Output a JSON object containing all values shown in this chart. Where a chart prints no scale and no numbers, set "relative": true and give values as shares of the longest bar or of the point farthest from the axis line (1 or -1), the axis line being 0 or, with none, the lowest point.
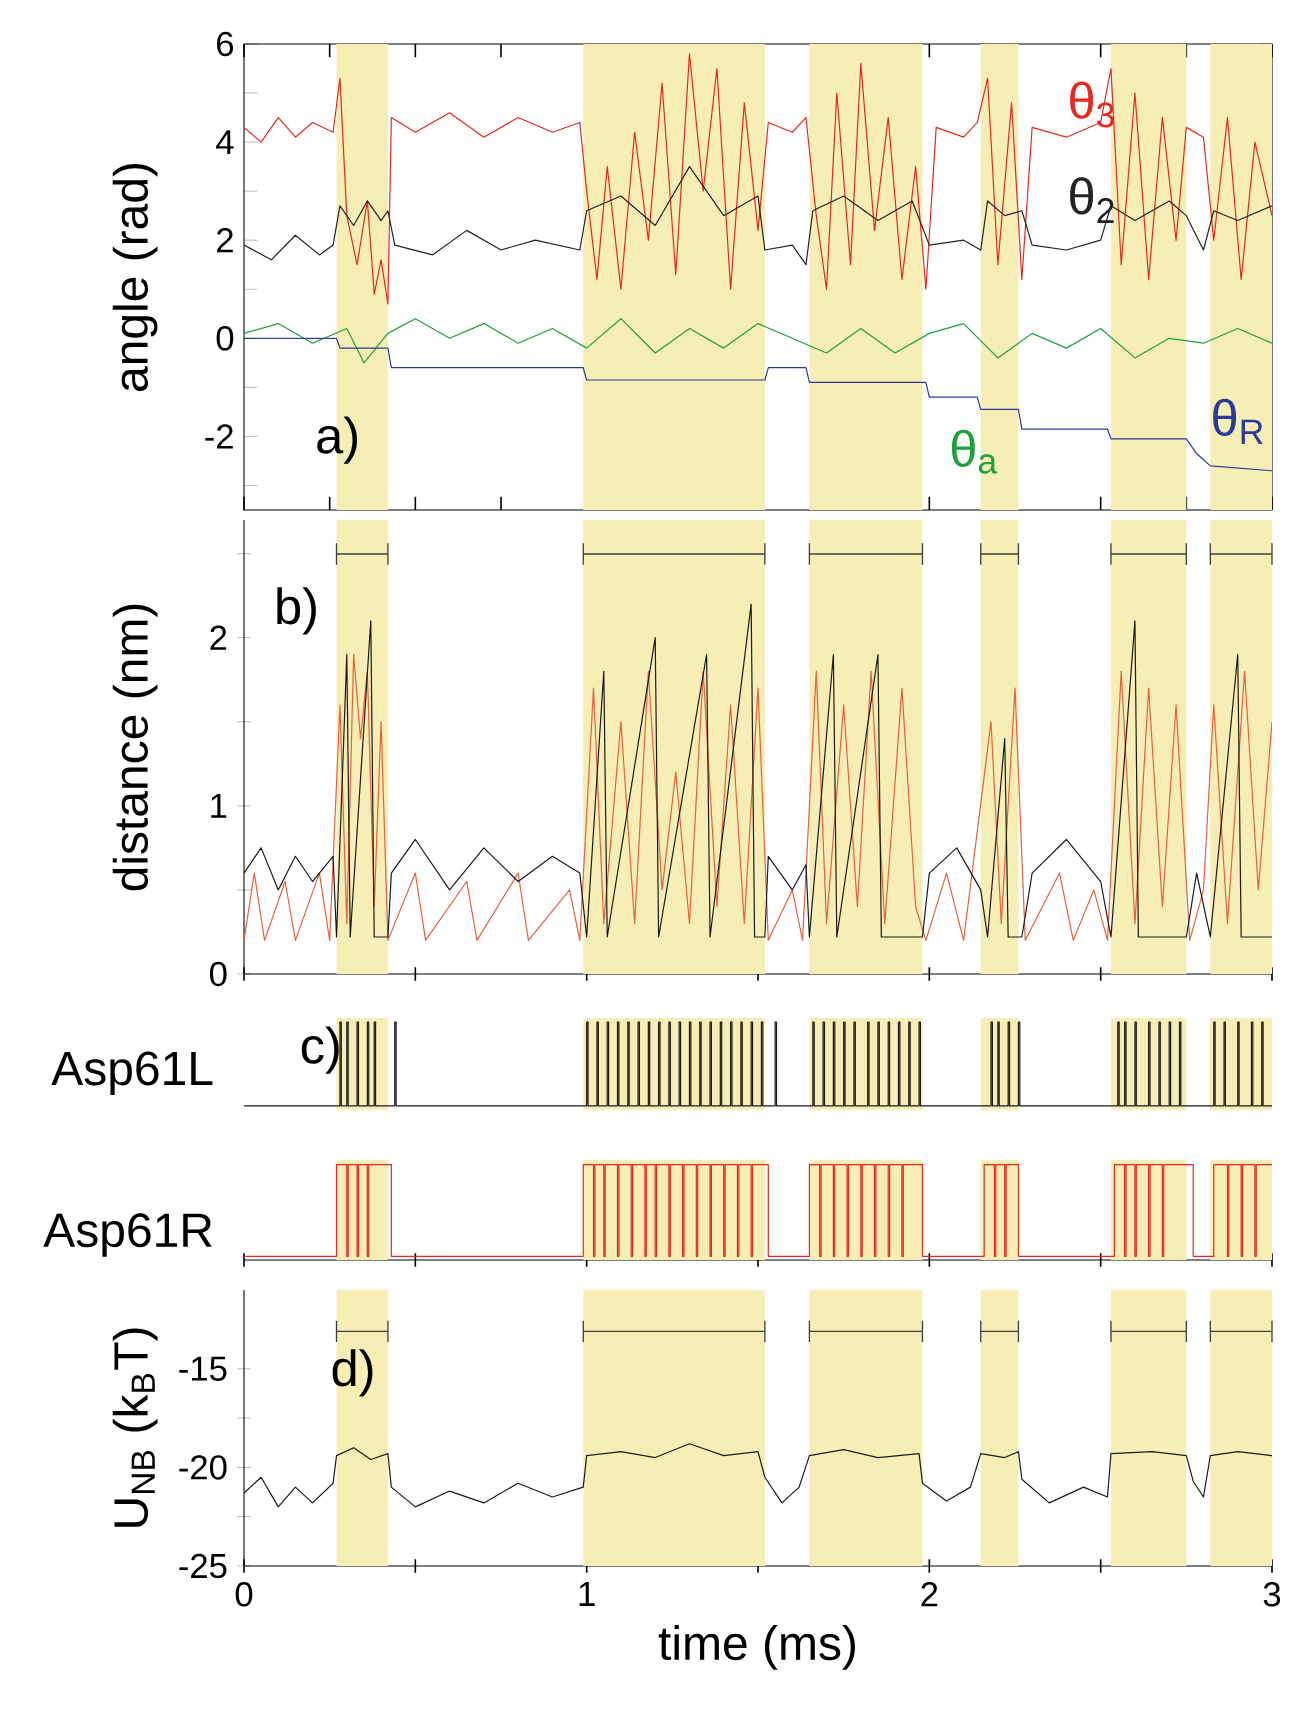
{
  "chart_data": [
    {
      "type": "line",
      "ylabel": "angle (rad)",
      "xlim": [
        0,
        3
      ],
      "ylim": [
        -3.5,
        6
      ],
      "tick_labels": "y",
      "xticks": [
        {
          "value": 0,
          "label": null
        },
        {
          "value": 0.25,
          "label": null
        },
        {
          "value": 0.5,
          "label": null
        },
        {
          "value": 0.75,
          "label": null
        },
        {
          "value": 1,
          "label": null
        },
        {
          "value": 1.25,
          "label": null
        },
        {
          "value": 1.5,
          "label": null
        },
        {
          "value": 1.75,
          "label": null
        },
        {
          "value": 2,
          "label": null
        },
        {
          "value": 2.25,
          "label": null
        },
        {
          "value": 2.5,
          "label": null
        },
        {
          "value": 2.75,
          "label": null
        },
        {
          "value": 3,
          "label": null
        }
      ],
      "yticks": [
        {
          "value": -3,
          "label": null
        },
        -2,
        {
          "value": -1,
          "label": null
        },
        0,
        {
          "value": 1,
          "label": null
        },
        2,
        {
          "value": 3,
          "label": null
        },
        4,
        {
          "value": 5,
          "label": null
        },
        6
      ],
      "annotations": [
        "a)"
      ],
      "bands": [
        {
          "axis": "x",
          "from": 0.27,
          "to": 0.42,
          "color": "#f6eeb4"
        },
        {
          "axis": "x",
          "from": 0.99,
          "to": 1.52,
          "color": "#f6eeb4"
        },
        {
          "axis": "x",
          "from": 1.65,
          "to": 1.98,
          "color": "#f6eeb4"
        },
        {
          "axis": "x",
          "from": 2.15,
          "to": 2.26,
          "color": "#f6eeb4"
        },
        {
          "axis": "x",
          "from": 2.53,
          "to": 2.75,
          "color": "#f6eeb4"
        },
        {
          "axis": "x",
          "from": 2.82,
          "to": 3,
          "color": "#f6eeb4"
        }
      ],
      "series": [
        {
          "name": "θ$_{3}$",
          "color": "#e8281e",
          "x": [
            0,
            0.05,
            0.1,
            0.15,
            0.2,
            0.26,
            0.28,
            0.3,
            0.33,
            0.36,
            0.38,
            0.4,
            0.42,
            0.43,
            0.5,
            0.6,
            0.7,
            0.8,
            0.9,
            0.98,
            1.0,
            1.03,
            1.06,
            1.1,
            1.14,
            1.18,
            1.22,
            1.26,
            1.3,
            1.34,
            1.38,
            1.42,
            1.46,
            1.5,
            1.53,
            1.6,
            1.64,
            1.67,
            1.7,
            1.73,
            1.77,
            1.8,
            1.84,
            1.88,
            1.92,
            1.96,
            1.99,
            2.02,
            2.1,
            2.14,
            2.17,
            2.2,
            2.24,
            2.27,
            2.3,
            2.4,
            2.5,
            2.53,
            2.56,
            2.6,
            2.64,
            2.68,
            2.72,
            2.75,
            2.8,
            2.83,
            2.87,
            2.91,
            2.95,
            3.0
          ],
          "values": [
            4.3,
            4.0,
            4.5,
            4.1,
            4.4,
            4.2,
            5.3,
            2.5,
            1.5,
            2.8,
            0.9,
            1.6,
            0.7,
            4.5,
            4.2,
            4.6,
            4.1,
            4.5,
            4.2,
            4.4,
            3.0,
            1.2,
            3.5,
            1.0,
            4.2,
            2.0,
            5.2,
            1.3,
            5.8,
            3.0,
            5.5,
            1.0,
            4.8,
            2.2,
            4.4,
            4.2,
            4.5,
            2.5,
            1.0,
            5.0,
            1.5,
            5.6,
            2.2,
            4.5,
            1.2,
            3.5,
            1.0,
            4.3,
            4.1,
            4.4,
            5.3,
            1.5,
            4.8,
            1.2,
            4.3,
            4.1,
            4.4,
            5.5,
            1.5,
            5.0,
            1.2,
            4.5,
            2.0,
            4.3,
            4.1,
            2.0,
            4.5,
            1.2,
            4.0,
            2.5
          ]
        },
        {
          "name": "θ$_{2}$",
          "color": "#222222",
          "x": [
            0,
            0.08,
            0.15,
            0.22,
            0.26,
            0.28,
            0.32,
            0.36,
            0.4,
            0.42,
            0.44,
            0.55,
            0.65,
            0.75,
            0.85,
            0.98,
            1.0,
            1.1,
            1.2,
            1.3,
            1.4,
            1.5,
            1.52,
            1.6,
            1.64,
            1.66,
            1.75,
            1.85,
            1.95,
            2.0,
            2.1,
            2.15,
            2.17,
            2.22,
            2.27,
            2.3,
            2.4,
            2.5,
            2.53,
            2.6,
            2.7,
            2.75,
            2.8,
            2.83,
            2.9,
            3.0
          ],
          "values": [
            1.9,
            1.6,
            2.1,
            1.7,
            1.9,
            2.7,
            2.3,
            2.8,
            2.4,
            2.6,
            1.9,
            1.7,
            2.2,
            1.8,
            2.0,
            1.8,
            2.6,
            2.9,
            2.3,
            3.5,
            2.5,
            2.9,
            1.8,
            1.9,
            1.5,
            2.6,
            2.9,
            2.4,
            2.8,
            1.9,
            2.0,
            1.8,
            2.8,
            2.5,
            2.6,
            1.9,
            1.8,
            2.0,
            2.7,
            2.4,
            2.8,
            2.5,
            1.8,
            2.6,
            2.4,
            2.7
          ]
        },
        {
          "name": "θ$_{a}$",
          "color": "#1ea03c",
          "x": [
            0,
            0.1,
            0.2,
            0.3,
            0.35,
            0.42,
            0.5,
            0.6,
            0.7,
            0.8,
            0.9,
            1.0,
            1.1,
            1.2,
            1.3,
            1.4,
            1.5,
            1.6,
            1.7,
            1.8,
            1.9,
            2.0,
            2.1,
            2.2,
            2.3,
            2.4,
            2.5,
            2.6,
            2.7,
            2.8,
            2.9,
            3.0
          ],
          "values": [
            0.1,
            0.3,
            -0.1,
            0.2,
            -0.5,
            0.1,
            0.4,
            0.0,
            0.3,
            -0.1,
            0.2,
            -0.2,
            0.4,
            -0.3,
            0.2,
            -0.2,
            0.3,
            0.0,
            -0.3,
            0.2,
            -0.3,
            0.1,
            0.3,
            -0.4,
            0.1,
            -0.2,
            0.2,
            -0.4,
            0.0,
            -0.1,
            0.2,
            -0.1
          ]
        },
        {
          "name": "θ$_{R}$",
          "color": "#2a3a9a",
          "x": [
            0,
            0.27,
            0.28,
            0.42,
            0.43,
            0.99,
            1.0,
            1.52,
            1.53,
            1.64,
            1.65,
            1.99,
            2.0,
            2.14,
            2.15,
            2.26,
            2.27,
            2.52,
            2.53,
            2.75,
            2.78,
            2.82,
            3.0
          ],
          "values": [
            0,
            0,
            -0.2,
            -0.2,
            -0.6,
            -0.6,
            -0.85,
            -0.85,
            -0.6,
            -0.6,
            -0.9,
            -0.9,
            -1.2,
            -1.2,
            -1.45,
            -1.45,
            -1.85,
            -1.85,
            -2.05,
            -2.05,
            -2.35,
            -2.6,
            -2.7
          ]
        }
      ]
    },
    {
      "type": "line",
      "ylabel": "distance (nm)",
      "xlim": [
        0,
        3
      ],
      "ylim": [
        0,
        2.7
      ],
      "tick_labels": "y",
      "xticks": [
        {
          "value": 0,
          "label": null
        },
        {
          "value": 0.5,
          "label": null
        },
        {
          "value": 1,
          "label": null
        },
        {
          "value": 1.5,
          "label": null
        },
        {
          "value": 2,
          "label": null
        },
        {
          "value": 2.5,
          "label": null
        },
        {
          "value": 3,
          "label": null
        }
      ],
      "yticks": [
        0,
        {
          "value": 0.5,
          "label": null
        },
        1,
        {
          "value": 1.5,
          "label": null
        },
        2,
        {
          "value": 2.5,
          "label": null
        }
      ],
      "annotations": [
        "b)"
      ],
      "bands": [
        {
          "axis": "x",
          "from": 0.27,
          "to": 0.42,
          "color": "#f6eeb4"
        },
        {
          "axis": "x",
          "from": 0.99,
          "to": 1.52,
          "color": "#f6eeb4"
        },
        {
          "axis": "x",
          "from": 1.65,
          "to": 1.98,
          "color": "#f6eeb4"
        },
        {
          "axis": "x",
          "from": 2.15,
          "to": 2.26,
          "color": "#f6eeb4"
        },
        {
          "axis": "x",
          "from": 2.53,
          "to": 2.75,
          "color": "#f6eeb4"
        },
        {
          "axis": "x",
          "from": 2.82,
          "to": 3,
          "color": "#f6eeb4"
        }
      ],
      "series": [
        {
          "color": "#e8603c",
          "x": [
            0,
            0.03,
            0.06,
            0.12,
            0.15,
            0.22,
            0.25,
            0.28,
            0.3,
            0.32,
            0.34,
            0.36,
            0.38,
            0.4,
            0.42,
            0.5,
            0.53,
            0.65,
            0.68,
            0.8,
            0.83,
            0.95,
            0.98,
            1.02,
            1.05,
            1.1,
            1.14,
            1.18,
            1.22,
            1.26,
            1.3,
            1.34,
            1.38,
            1.42,
            1.46,
            1.5,
            1.53,
            1.6,
            1.63,
            1.67,
            1.7,
            1.75,
            1.79,
            1.83,
            1.87,
            1.92,
            1.96,
            1.99,
            2.05,
            2.1,
            2.18,
            2.21,
            2.25,
            2.28,
            2.38,
            2.42,
            2.48,
            2.52,
            2.56,
            2.6,
            2.64,
            2.68,
            2.72,
            2.76,
            2.8,
            2.83,
            2.87,
            2.92,
            2.96,
            3.0
          ],
          "values": [
            0.2,
            0.6,
            0.2,
            0.55,
            0.2,
            0.6,
            0.2,
            1.6,
            0.3,
            1.9,
            1.4,
            1.8,
            0.4,
            1.5,
            0.2,
            0.6,
            0.2,
            0.55,
            0.2,
            0.6,
            0.2,
            0.5,
            0.2,
            1.7,
            0.3,
            1.5,
            0.3,
            1.8,
            0.5,
            1.2,
            0.3,
            1.8,
            0.4,
            1.6,
            0.3,
            1.7,
            0.2,
            0.5,
            0.2,
            1.8,
            0.3,
            1.6,
            0.4,
            1.8,
            0.3,
            1.7,
            0.4,
            0.2,
            0.6,
            0.2,
            1.5,
            0.3,
            1.7,
            0.2,
            0.6,
            0.2,
            0.5,
            0.2,
            1.8,
            0.3,
            1.7,
            0.4,
            1.6,
            0.2,
            0.5,
            1.6,
            0.3,
            1.8,
            0.5,
            1.5
          ]
        },
        {
          "color": "#1a1a1a",
          "x": [
            0,
            0.05,
            0.1,
            0.15,
            0.2,
            0.26,
            0.27,
            0.3,
            0.31,
            0.37,
            0.38,
            0.42,
            0.43,
            0.5,
            0.6,
            0.7,
            0.8,
            0.9,
            0.98,
            1.0,
            1.05,
            1.06,
            1.2,
            1.21,
            1.35,
            1.36,
            1.48,
            1.49,
            1.52,
            1.53,
            1.6,
            1.64,
            1.65,
            1.72,
            1.73,
            1.85,
            1.86,
            1.98,
            2.0,
            2.08,
            2.15,
            2.17,
            2.22,
            2.23,
            2.27,
            2.3,
            2.4,
            2.5,
            2.53,
            2.6,
            2.61,
            2.75,
            2.78,
            2.82,
            2.9,
            2.91,
            3.0
          ],
          "values": [
            0.6,
            0.75,
            0.5,
            0.7,
            0.55,
            0.7,
            0.22,
            1.9,
            0.22,
            2.1,
            0.22,
            0.22,
            0.6,
            0.8,
            0.5,
            0.75,
            0.55,
            0.7,
            0.6,
            0.22,
            1.8,
            0.22,
            2.0,
            0.22,
            1.9,
            0.22,
            2.2,
            0.22,
            0.22,
            0.7,
            0.5,
            0.65,
            0.22,
            1.9,
            0.22,
            1.9,
            0.22,
            0.22,
            0.6,
            0.75,
            0.5,
            0.22,
            1.4,
            0.22,
            0.22,
            0.6,
            0.8,
            0.55,
            0.22,
            2.1,
            0.22,
            0.22,
            0.6,
            0.22,
            1.9,
            0.22,
            0.22
          ]
        }
      ]
    },
    {
      "type": "step",
      "relative": true,
      "ylabel": "Asp61L",
      "xlim": [
        0,
        3
      ],
      "tick_labels": false,
      "annotations": [
        "c)"
      ],
      "bands": [
        {
          "axis": "x",
          "from": 0.27,
          "to": 0.42,
          "color": "#f6eeb4"
        },
        {
          "axis": "x",
          "from": 0.99,
          "to": 1.52,
          "color": "#f6eeb4"
        },
        {
          "axis": "x",
          "from": 1.65,
          "to": 1.98,
          "color": "#f6eeb4"
        },
        {
          "axis": "x",
          "from": 2.15,
          "to": 2.26,
          "color": "#f6eeb4"
        },
        {
          "axis": "x",
          "from": 2.53,
          "to": 2.75,
          "color": "#f6eeb4"
        },
        {
          "axis": "x",
          "from": 2.82,
          "to": 3,
          "color": "#f6eeb4"
        }
      ],
      "series": [
        {
          "color": "#1a1a1a",
          "x": [
            0,
            0.28,
            0.284,
            0.3,
            0.304,
            0.33,
            0.334,
            0.36,
            0.364,
            0.38,
            0.384,
            0.44,
            0.444,
            1.0,
            1.004,
            1.03,
            1.034,
            1.06,
            1.064,
            1.09,
            1.094,
            1.12,
            1.124,
            1.15,
            1.154,
            1.18,
            1.184,
            1.21,
            1.214,
            1.24,
            1.244,
            1.27,
            1.274,
            1.3,
            1.304,
            1.33,
            1.334,
            1.36,
            1.364,
            1.39,
            1.394,
            1.42,
            1.424,
            1.45,
            1.454,
            1.48,
            1.484,
            1.51,
            1.514,
            1.55,
            1.554,
            1.66,
            1.664,
            1.69,
            1.694,
            1.72,
            1.724,
            1.75,
            1.754,
            1.78,
            1.784,
            1.82,
            1.824,
            1.85,
            1.854,
            1.88,
            1.884,
            1.91,
            1.914,
            1.94,
            1.944,
            1.97,
            1.974,
            2.18,
            2.184,
            2.2,
            2.204,
            2.23,
            2.234,
            2.26,
            2.264,
            2.55,
            2.554,
            2.57,
            2.574,
            2.6,
            2.604,
            2.64,
            2.644,
            2.67,
            2.674,
            2.7,
            2.704,
            2.73,
            2.734,
            2.83,
            2.834,
            2.86,
            2.864,
            2.9,
            2.904,
            2.94,
            2.944,
            2.97,
            2.974,
            3.0
          ],
          "values": [
            0,
            1,
            0,
            1,
            0,
            1,
            0,
            1,
            0,
            1,
            0,
            1,
            0,
            1,
            0,
            1,
            0,
            1,
            0,
            1,
            0,
            1,
            0,
            1,
            0,
            1,
            0,
            1,
            0,
            1,
            0,
            1,
            0,
            1,
            0,
            1,
            0,
            1,
            0,
            1,
            0,
            1,
            0,
            1,
            0,
            1,
            0,
            1,
            0,
            1,
            0,
            1,
            0,
            1,
            0,
            1,
            0,
            1,
            0,
            1,
            0,
            1,
            0,
            1,
            0,
            1,
            0,
            1,
            0,
            1,
            0,
            1,
            0,
            1,
            0,
            1,
            0,
            1,
            0,
            1,
            0,
            1,
            0,
            1,
            0,
            1,
            0,
            1,
            0,
            1,
            0,
            1,
            0,
            1,
            0,
            1,
            0,
            1,
            0,
            1,
            0,
            1,
            0,
            1,
            0,
            0
          ]
        }
      ]
    },
    {
      "type": "step",
      "relative": true,
      "ylabel": "Asp61R",
      "xlim": [
        0,
        3
      ],
      "tick_labels": false,
      "xticks": [
        {
          "value": 0,
          "label": null
        },
        {
          "value": 0.5,
          "label": null
        },
        {
          "value": 1,
          "label": null
        },
        {
          "value": 1.5,
          "label": null
        },
        {
          "value": 2,
          "label": null
        },
        {
          "value": 2.5,
          "label": null
        },
        {
          "value": 3,
          "label": null
        }
      ],
      "bands": [
        {
          "axis": "x",
          "from": 0.27,
          "to": 0.42,
          "color": "#f6eeb4"
        },
        {
          "axis": "x",
          "from": 0.99,
          "to": 1.52,
          "color": "#f6eeb4"
        },
        {
          "axis": "x",
          "from": 1.65,
          "to": 1.98,
          "color": "#f6eeb4"
        },
        {
          "axis": "x",
          "from": 2.15,
          "to": 2.26,
          "color": "#f6eeb4"
        },
        {
          "axis": "x",
          "from": 2.53,
          "to": 2.75,
          "color": "#f6eeb4"
        },
        {
          "axis": "x",
          "from": 2.82,
          "to": 3,
          "color": "#f6eeb4"
        }
      ],
      "series": [
        {
          "color": "#e8281e",
          "x": [
            0,
            0.27,
            0.3,
            0.304,
            0.33,
            0.334,
            0.36,
            0.364,
            0.43,
            0.99,
            1.02,
            1.024,
            1.05,
            1.054,
            1.09,
            1.094,
            1.13,
            1.134,
            1.17,
            1.174,
            1.2,
            1.204,
            1.24,
            1.244,
            1.28,
            1.284,
            1.32,
            1.324,
            1.36,
            1.364,
            1.4,
            1.404,
            1.44,
            1.444,
            1.48,
            1.484,
            1.53,
            1.65,
            1.68,
            1.684,
            1.72,
            1.724,
            1.76,
            1.764,
            1.8,
            1.804,
            1.84,
            1.844,
            1.88,
            1.884,
            1.92,
            1.924,
            1.98,
            2.16,
            2.19,
            2.194,
            2.22,
            2.224,
            2.26,
            2.54,
            2.57,
            2.574,
            2.6,
            2.604,
            2.64,
            2.644,
            2.68,
            2.684,
            2.77,
            2.83,
            2.87,
            2.874,
            2.91,
            2.914,
            2.95,
            2.954,
            3.0
          ],
          "values": [
            0,
            1,
            0,
            1,
            0,
            1,
            0,
            1,
            0,
            1,
            0,
            1,
            0,
            1,
            0,
            1,
            0,
            1,
            0,
            1,
            0,
            1,
            0,
            1,
            0,
            1,
            0,
            1,
            0,
            1,
            0,
            1,
            0,
            1,
            0,
            1,
            0,
            1,
            0,
            1,
            0,
            1,
            0,
            1,
            0,
            1,
            0,
            1,
            0,
            1,
            0,
            1,
            0,
            1,
            0,
            1,
            0,
            1,
            0,
            1,
            0,
            1,
            0,
            1,
            0,
            1,
            0,
            1,
            0,
            1,
            0,
            1,
            0,
            1,
            0,
            1,
            1
          ]
        }
      ]
    },
    {
      "type": "line",
      "ylabel": "U$_{NB}$ (k$_{B}$T)",
      "xlabel": "time (ms)",
      "xlim": [
        0,
        3
      ],
      "ylim": [
        -25,
        -11
      ],
      "xticks": [
        0,
        {
          "value": 0.5,
          "label": null
        },
        1,
        {
          "value": 1.5,
          "label": null
        },
        2,
        {
          "value": 2.5,
          "label": null
        },
        3
      ],
      "yticks": [
        -25,
        {
          "value": -22.5,
          "label": null
        },
        -20,
        {
          "value": -17.5,
          "label": null
        },
        -15
      ],
      "annotations": [
        "d)"
      ],
      "bands": [
        {
          "axis": "x",
          "from": 0.27,
          "to": 0.42,
          "color": "#f6eeb4"
        },
        {
          "axis": "x",
          "from": 0.99,
          "to": 1.52,
          "color": "#f6eeb4"
        },
        {
          "axis": "x",
          "from": 1.65,
          "to": 1.98,
          "color": "#f6eeb4"
        },
        {
          "axis": "x",
          "from": 2.15,
          "to": 2.26,
          "color": "#f6eeb4"
        },
        {
          "axis": "x",
          "from": 2.53,
          "to": 2.75,
          "color": "#f6eeb4"
        },
        {
          "axis": "x",
          "from": 2.82,
          "to": 3,
          "color": "#f6eeb4"
        }
      ],
      "series": [
        {
          "color": "#1a1a1a",
          "x": [
            0,
            0.05,
            0.1,
            0.15,
            0.2,
            0.26,
            0.27,
            0.32,
            0.37,
            0.42,
            0.43,
            0.5,
            0.6,
            0.7,
            0.8,
            0.9,
            0.99,
            1.0,
            1.1,
            1.2,
            1.3,
            1.4,
            1.5,
            1.52,
            1.57,
            1.62,
            1.65,
            1.75,
            1.85,
            1.97,
            1.98,
            2.05,
            2.12,
            2.15,
            2.22,
            2.26,
            2.27,
            2.35,
            2.45,
            2.52,
            2.53,
            2.65,
            2.75,
            2.77,
            2.8,
            2.82,
            2.9,
            3.0
          ],
          "values": [
            -21.3,
            -20.5,
            -22.0,
            -21.0,
            -21.8,
            -20.8,
            -19.4,
            -19.0,
            -19.6,
            -19.3,
            -21.0,
            -22.0,
            -21.2,
            -21.8,
            -20.8,
            -21.5,
            -21.0,
            -19.4,
            -19.2,
            -19.5,
            -18.8,
            -19.4,
            -19.2,
            -20.5,
            -21.8,
            -21.0,
            -19.4,
            -19.1,
            -19.5,
            -19.3,
            -20.8,
            -21.7,
            -21.0,
            -19.3,
            -19.5,
            -19.2,
            -20.6,
            -21.8,
            -21.0,
            -21.5,
            -19.3,
            -19.2,
            -19.4,
            -20.7,
            -21.5,
            -19.4,
            -19.2,
            -19.4
          ]
        }
      ]
    }
  ]
}
